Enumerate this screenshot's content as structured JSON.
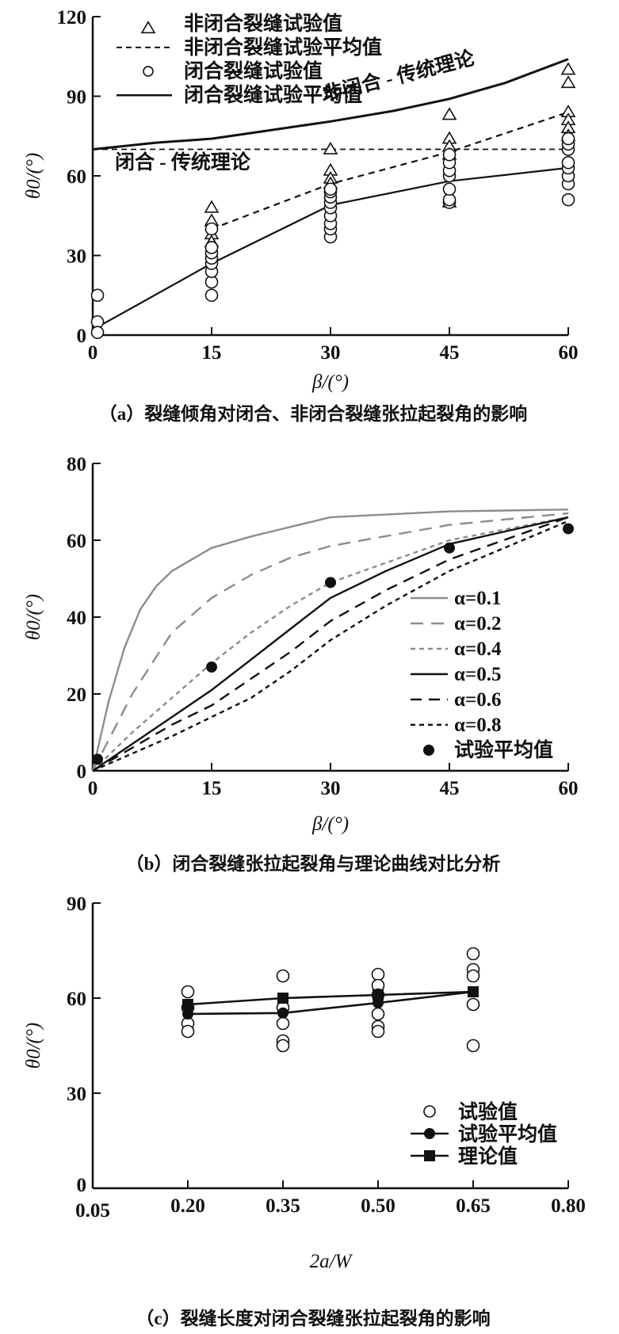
{
  "colors": {
    "ink": "#111111",
    "gray": "#8c8c8c"
  },
  "chart_data": [
    {
      "id": "a",
      "type": "scatter",
      "caption": "（a）裂缝倾角对闭合、非闭合裂缝张拉起裂角的影响",
      "xlabel": "β/(°)",
      "ylabel": "θ0/(°)",
      "xlim": [
        0,
        60
      ],
      "ylim": [
        0,
        120
      ],
      "xticks": [
        "0",
        "15",
        "30",
        "45",
        "60"
      ],
      "yticks": [
        "0",
        "30",
        "60",
        "90",
        "120"
      ],
      "legend": [
        "非闭合裂缝试验值",
        "非闭合裂缝试验平均值",
        "闭合裂缝试验值",
        "闭合裂缝试验平均值"
      ],
      "legend_position": "top-left",
      "annotations": [
        "非闭合 - 传统理论",
        "闭合 - 传统理论"
      ],
      "series": [
        {
          "name": "非闭合裂缝试验值",
          "kind": "triangle",
          "points": [
            [
              15,
              48
            ],
            [
              15,
              43
            ],
            [
              15,
              38
            ],
            [
              15,
              35
            ],
            [
              30,
              70
            ],
            [
              30,
              62
            ],
            [
              30,
              59
            ],
            [
              30,
              57
            ],
            [
              45,
              83
            ],
            [
              45,
              74
            ],
            [
              45,
              71
            ],
            [
              45,
              68
            ],
            [
              45,
              50
            ],
            [
              60,
              100
            ],
            [
              60,
              95
            ],
            [
              60,
              84
            ],
            [
              60,
              81
            ],
            [
              60,
              78
            ],
            [
              60,
              75
            ]
          ]
        },
        {
          "name": "非闭合裂缝试验平均值",
          "kind": "dashed",
          "points": [
            [
              15,
              40
            ],
            [
              30,
              57
            ],
            [
              45,
              69
            ],
            [
              60,
              84
            ]
          ]
        },
        {
          "name": "闭合裂缝试验值",
          "kind": "circle",
          "points": [
            [
              0.6,
              15
            ],
            [
              0.6,
              5
            ],
            [
              0.6,
              1
            ],
            [
              15,
              15
            ],
            [
              15,
              20
            ],
            [
              15,
              24
            ],
            [
              15,
              27
            ],
            [
              15,
              29
            ],
            [
              15,
              31
            ],
            [
              15,
              33
            ],
            [
              15,
              40
            ],
            [
              30,
              37
            ],
            [
              30,
              40
            ],
            [
              30,
              42
            ],
            [
              30,
              45
            ],
            [
              30,
              48
            ],
            [
              30,
              50
            ],
            [
              30,
              52
            ],
            [
              30,
              54
            ],
            [
              30,
              55
            ],
            [
              45,
              50
            ],
            [
              45,
              51
            ],
            [
              45,
              55
            ],
            [
              45,
              60
            ],
            [
              45,
              62
            ],
            [
              45,
              65
            ],
            [
              45,
              68
            ],
            [
              60,
              51
            ],
            [
              60,
              57
            ],
            [
              60,
              60
            ],
            [
              60,
              63
            ],
            [
              60,
              65
            ],
            [
              60,
              70
            ],
            [
              60,
              72
            ],
            [
              60,
              74
            ]
          ]
        },
        {
          "name": "闭合裂缝试验平均值",
          "kind": "solid",
          "points": [
            [
              0.6,
              3
            ],
            [
              15,
              27
            ],
            [
              30,
              49
            ],
            [
              45,
              58
            ],
            [
              60,
              63
            ]
          ]
        },
        {
          "name": "非闭合 - 传统理论",
          "kind": "solid",
          "points": [
            [
              0,
              70
            ],
            [
              8,
              72.5
            ],
            [
              15,
              74
            ],
            [
              22,
              77
            ],
            [
              30,
              80.5
            ],
            [
              38,
              84.5
            ],
            [
              45,
              89
            ],
            [
              52,
              95
            ],
            [
              60,
              104
            ]
          ]
        },
        {
          "name": "闭合 - 传统理论",
          "kind": "dashed",
          "points": [
            [
              0,
              70
            ],
            [
              60,
              70
            ]
          ]
        }
      ]
    },
    {
      "id": "b",
      "type": "line",
      "caption": "（b）闭合裂缝张拉起裂角与理论曲线对比分析",
      "xlabel": "β/(°)",
      "ylabel": "θ0/(°)",
      "xlim": [
        0,
        60
      ],
      "ylim": [
        0,
        80
      ],
      "xticks": [
        "0",
        "15",
        "30",
        "45",
        "60"
      ],
      "yticks": [
        "0",
        "20",
        "40",
        "60",
        "80"
      ],
      "legend_position": "bottom-right",
      "series": [
        {
          "name": "α=0.1",
          "color": "#8c8c8c",
          "dash": "",
          "points": [
            [
              0,
              0
            ],
            [
              2,
              18
            ],
            [
              4,
              32
            ],
            [
              6,
              42
            ],
            [
              8,
              48
            ],
            [
              10,
              52
            ],
            [
              15,
              58
            ],
            [
              20,
              61
            ],
            [
              25,
              63.5
            ],
            [
              30,
              66
            ],
            [
              45,
              67.5
            ],
            [
              60,
              68
            ]
          ]
        },
        {
          "name": "α=0.2",
          "color": "#8c8c8c",
          "dash": "16 10",
          "points": [
            [
              0,
              0
            ],
            [
              5,
              20
            ],
            [
              10,
              36
            ],
            [
              15,
              45
            ],
            [
              20,
              51
            ],
            [
              25,
              55.5
            ],
            [
              30,
              58.5
            ],
            [
              45,
              64
            ],
            [
              60,
              67
            ]
          ]
        },
        {
          "name": "α=0.4",
          "color": "#8c8c8c",
          "dash": "6 5",
          "points": [
            [
              0,
              0
            ],
            [
              5,
              10
            ],
            [
              10,
              19
            ],
            [
              15,
              28
            ],
            [
              20,
              36
            ],
            [
              25,
              43
            ],
            [
              30,
              49
            ],
            [
              45,
              60
            ],
            [
              60,
              66
            ]
          ]
        },
        {
          "name": "α=0.5",
          "color": "#111111",
          "dash": "",
          "points": [
            [
              0,
              0
            ],
            [
              10,
              14
            ],
            [
              15,
              21
            ],
            [
              20,
              29
            ],
            [
              25,
              37
            ],
            [
              30,
              45
            ],
            [
              37,
              52
            ],
            [
              45,
              59
            ],
            [
              60,
              66
            ]
          ]
        },
        {
          "name": "α=0.6",
          "color": "#111111",
          "dash": "14 9",
          "points": [
            [
              0,
              0
            ],
            [
              10,
              12
            ],
            [
              15,
              17
            ],
            [
              20,
              24
            ],
            [
              25,
              31
            ],
            [
              30,
              39
            ],
            [
              37,
              47
            ],
            [
              45,
              55
            ],
            [
              60,
              66
            ]
          ]
        },
        {
          "name": "α=0.8",
          "color": "#111111",
          "dash": "6 5",
          "points": [
            [
              0,
              0
            ],
            [
              10,
              9
            ],
            [
              15,
              14
            ],
            [
              20,
              19
            ],
            [
              25,
              26
            ],
            [
              30,
              34
            ],
            [
              37,
              43
            ],
            [
              45,
              52
            ],
            [
              60,
              65
            ]
          ]
        },
        {
          "name": "试验平均值",
          "kind": "dot",
          "points": [
            [
              0.6,
              3
            ],
            [
              15,
              27
            ],
            [
              30,
              49
            ],
            [
              45,
              58
            ],
            [
              60,
              63
            ]
          ]
        }
      ]
    },
    {
      "id": "c",
      "type": "scatter",
      "caption": "（c）裂缝长度对闭合裂缝张拉起裂角的影响",
      "xlabel": "2a/W",
      "ylabel": "θ0/(°)",
      "xlim": [
        0.05,
        0.8
      ],
      "ylim": [
        0,
        90
      ],
      "xticks": [
        "0.05",
        "0.20",
        "0.35",
        "0.50",
        "0.65",
        "0.80"
      ],
      "yticks": [
        "0",
        "30",
        "60",
        "90"
      ],
      "legend_position": "bottom-right",
      "series": [
        {
          "name": "试验值",
          "kind": "circle",
          "points": [
            [
              0.2,
              62
            ],
            [
              0.2,
              57
            ],
            [
              0.2,
              52
            ],
            [
              0.2,
              49.5
            ],
            [
              0.35,
              67
            ],
            [
              0.35,
              57
            ],
            [
              0.35,
              52
            ],
            [
              0.35,
              46.5
            ],
            [
              0.35,
              45
            ],
            [
              0.5,
              67.5
            ],
            [
              0.5,
              64
            ],
            [
              0.5,
              61
            ],
            [
              0.5,
              55
            ],
            [
              0.5,
              51
            ],
            [
              0.5,
              49.5
            ],
            [
              0.65,
              74
            ],
            [
              0.65,
              69
            ],
            [
              0.65,
              67
            ],
            [
              0.65,
              58
            ],
            [
              0.65,
              45
            ]
          ]
        },
        {
          "name": "试验平均值",
          "kind": "dotline",
          "points": [
            [
              0.2,
              55
            ],
            [
              0.35,
              55.3
            ],
            [
              0.5,
              58.5
            ],
            [
              0.65,
              62
            ]
          ]
        },
        {
          "name": "理论值",
          "kind": "squareline",
          "points": [
            [
              0.2,
              58
            ],
            [
              0.35,
              60
            ],
            [
              0.5,
              61
            ],
            [
              0.65,
              62
            ]
          ]
        }
      ]
    }
  ]
}
